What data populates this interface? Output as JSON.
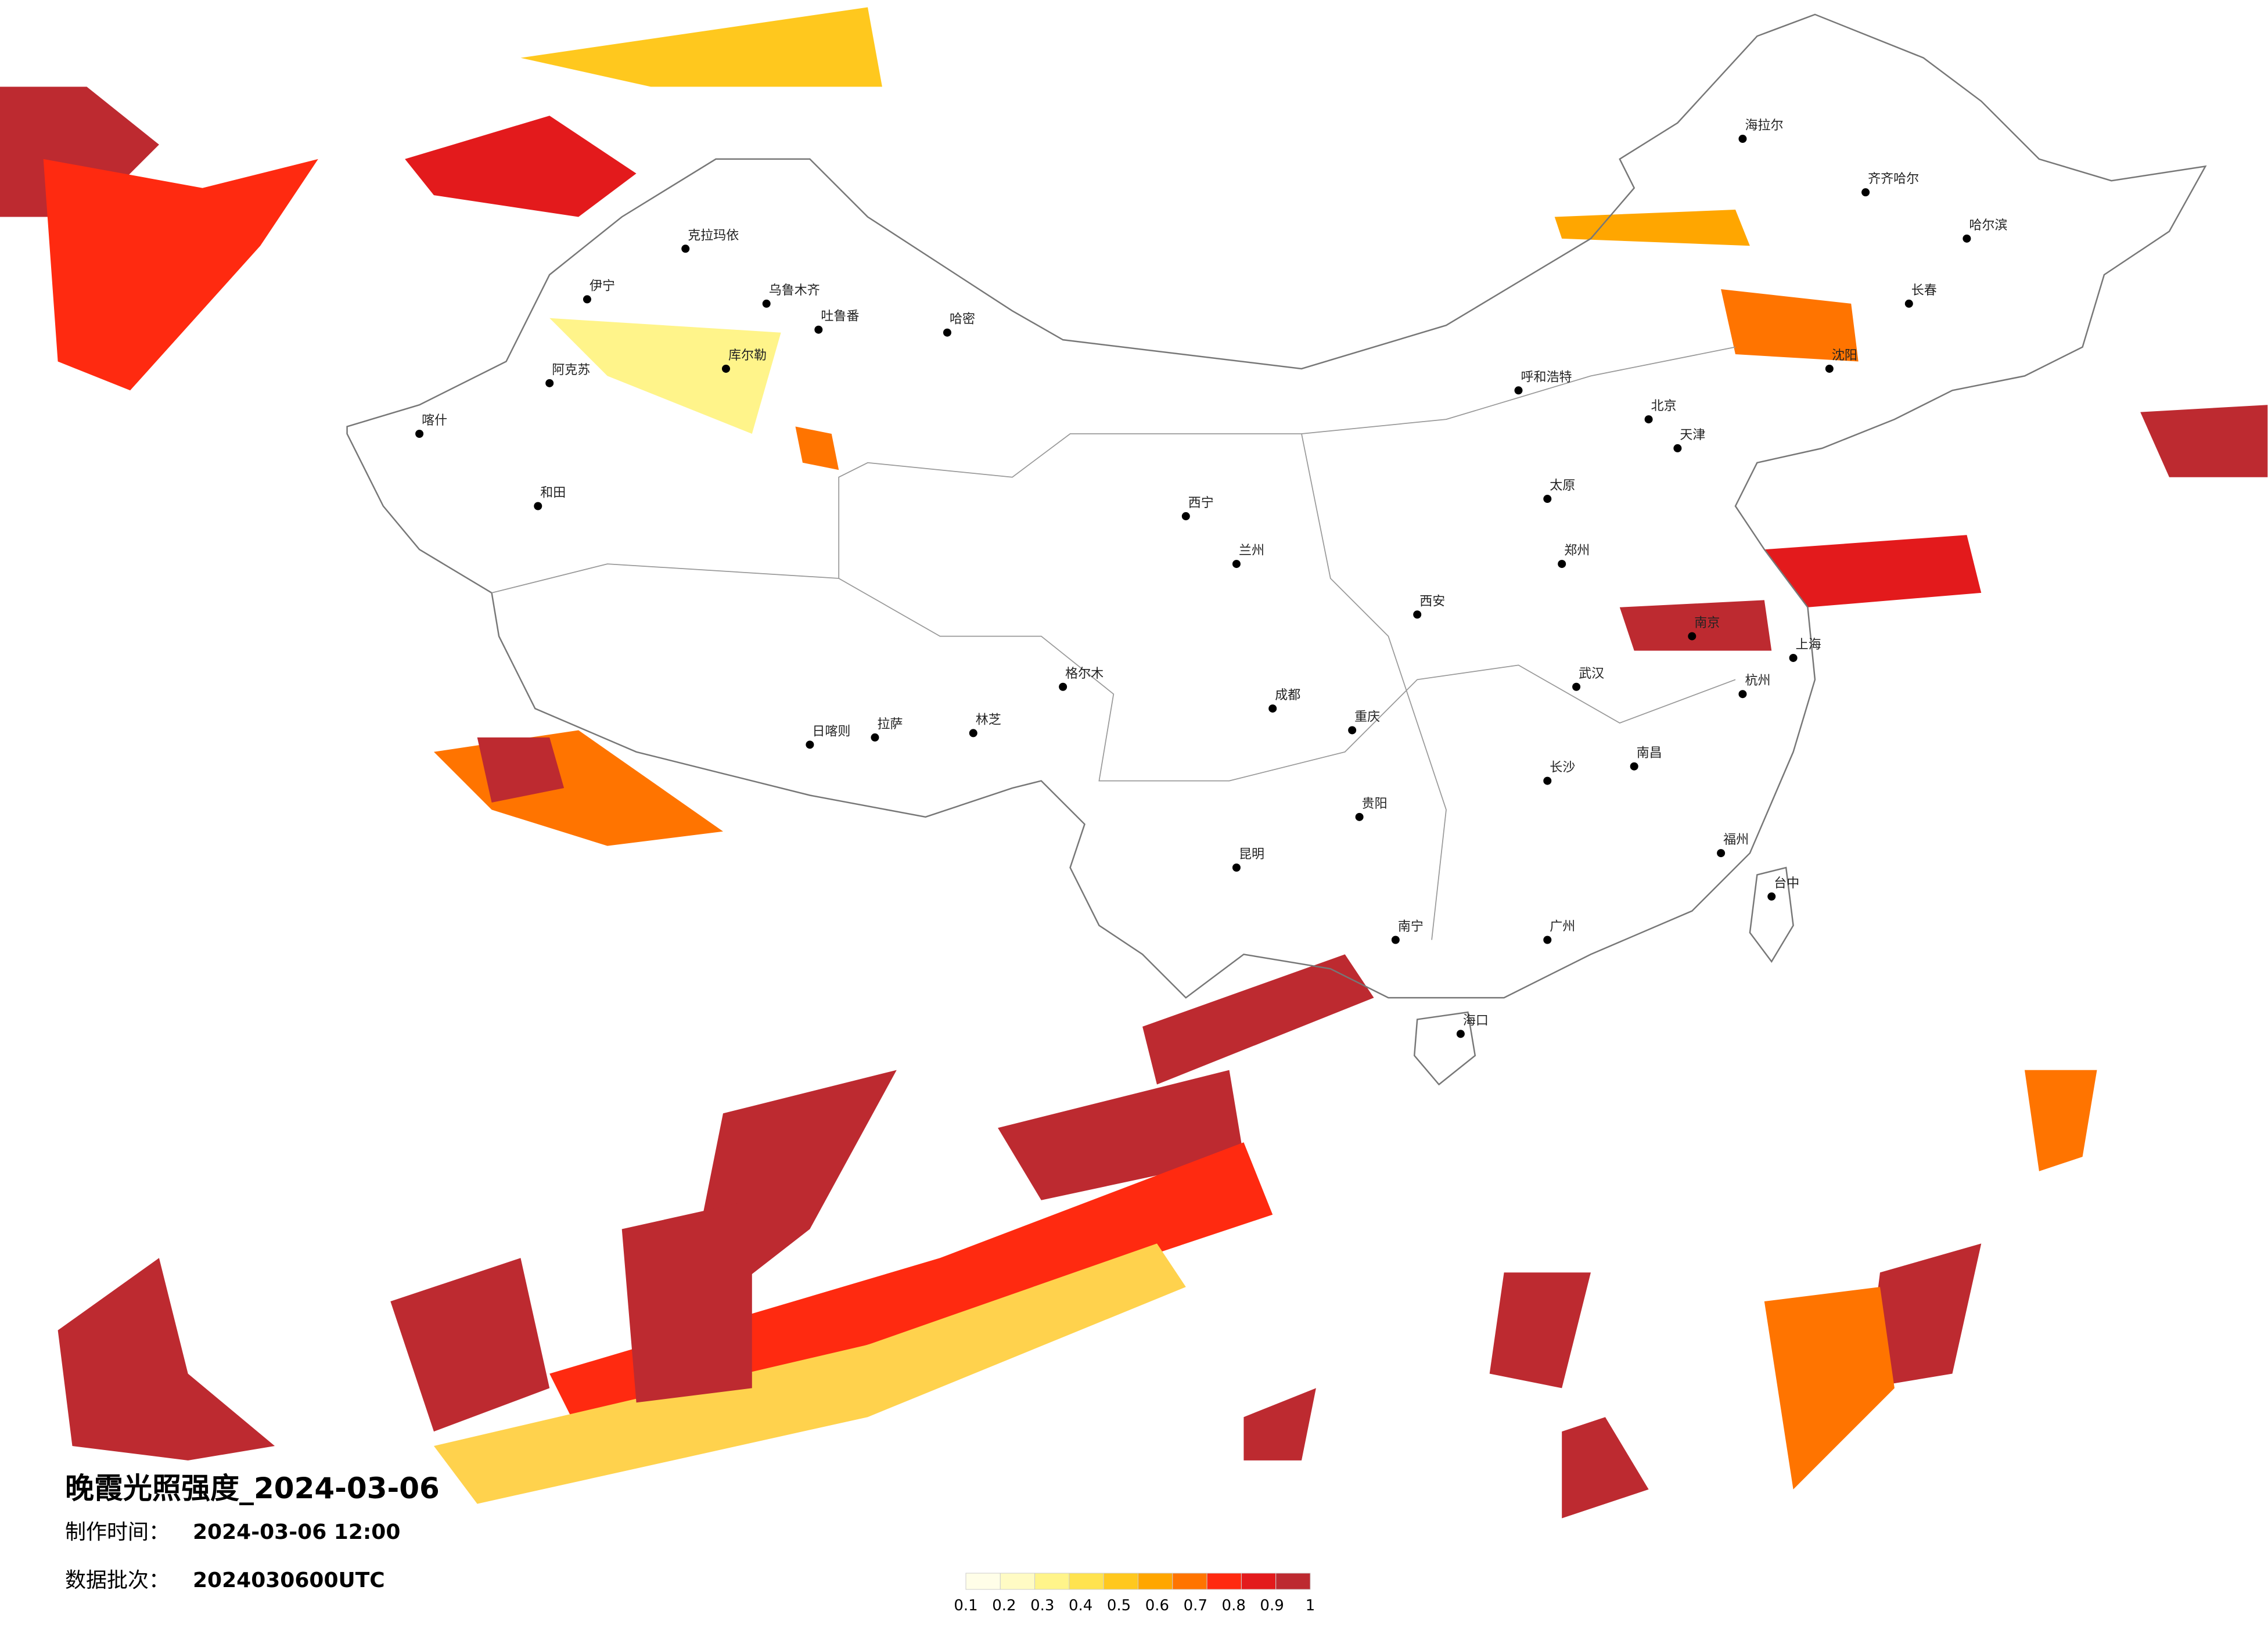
{
  "title": "晚霞光照强度_2024-03-06",
  "production_time": {
    "label": "制作时间：",
    "value": "2024-03-06 12:00"
  },
  "data_batch": {
    "label": "数据批次：",
    "value": "2024030600UTC"
  },
  "legend": {
    "colors": [
      "#fffee8",
      "#fffbc4",
      "#fff48a",
      "#ffe34f",
      "#ffc81e",
      "#ffa600",
      "#ff7400",
      "#ff2a10",
      "#e31a1c",
      "#bd2a30"
    ],
    "ticks": [
      0.1,
      0.2,
      0.3,
      0.4,
      0.5,
      0.6,
      0.7,
      0.8,
      0.9,
      1
    ]
  },
  "cities": [
    "克拉玛依",
    "乌鲁木齐",
    "吐鲁番",
    "哈密",
    "伊宁",
    "库尔勒",
    "阿克苏",
    "喀什",
    "和田",
    "日喀则",
    "拉萨",
    "林芝",
    "格尔木",
    "海拉尔",
    "齐齐哈尔",
    "哈尔滨",
    "长春",
    "沈阳",
    "北京",
    "天津",
    "呼和浩特",
    "太原",
    "郑州",
    "西安",
    "兰州",
    "西宁",
    "成都",
    "重庆",
    "昆明",
    "贵阳",
    "南宁",
    "广州",
    "武汉",
    "长沙",
    "南昌",
    "杭州",
    "上海",
    "南京",
    "福州",
    "台中",
    "海口"
  ]
}
